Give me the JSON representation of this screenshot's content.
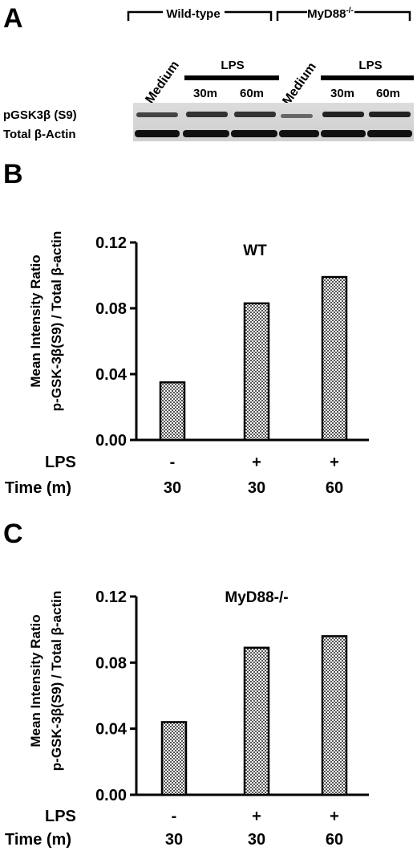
{
  "panel_a": {
    "letter": "A",
    "groups": [
      {
        "label": "Wild-type"
      },
      {
        "label": "MyD88",
        "superscript": "-/-"
      }
    ],
    "medium_label": "Medium",
    "lps_label": "LPS",
    "times": [
      "30m",
      "60m"
    ],
    "row_labels": [
      "pGSK3β (S9)",
      "Total β-Actin"
    ]
  },
  "chart_data": [
    {
      "type": "bar",
      "letter": "B",
      "title": "WT",
      "ylabel_line1": "Mean Intensity Ratio",
      "ylabel_line2": "p-GSK-3β(S9) / Total β-actin",
      "ylim": [
        0,
        0.12
      ],
      "yticks": [
        "0.00",
        "0.04",
        "0.08",
        "0.12"
      ],
      "ytick_values": [
        0,
        0.04,
        0.08,
        0.12
      ],
      "row_labels": [
        "LPS",
        "Time (m)"
      ],
      "categories": [
        {
          "lps": "-",
          "time": "30"
        },
        {
          "lps": "+",
          "time": "30"
        },
        {
          "lps": "+",
          "time": "60"
        }
      ],
      "values": [
        0.035,
        0.083,
        0.099
      ]
    },
    {
      "type": "bar",
      "letter": "C",
      "title": "MyD88-/-",
      "ylabel_line1": "Mean Intensity Ratio",
      "ylabel_line2": "p-GSK-3β(S9) / Total β-actin",
      "ylim": [
        0,
        0.12
      ],
      "yticks": [
        "0.00",
        "0.04",
        "0.08",
        "0.12"
      ],
      "ytick_values": [
        0,
        0.04,
        0.08,
        0.12
      ],
      "row_labels": [
        "LPS",
        "Time (m)"
      ],
      "categories": [
        {
          "lps": "-",
          "time": "30"
        },
        {
          "lps": "+",
          "time": "30"
        },
        {
          "lps": "+",
          "time": "60"
        }
      ],
      "values": [
        0.044,
        0.089,
        0.096
      ]
    }
  ]
}
